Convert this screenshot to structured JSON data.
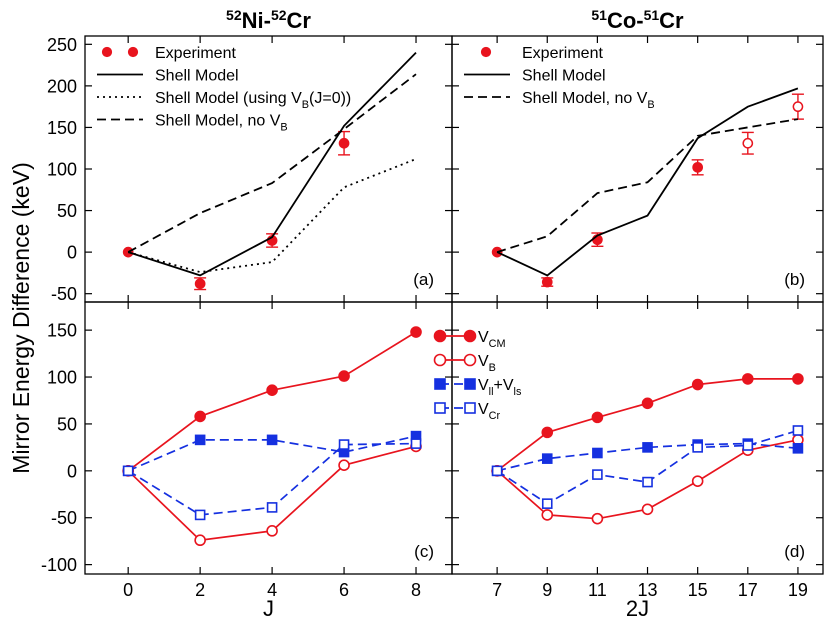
{
  "ylabel": "Mirror Energy Difference (keV)",
  "chart_data": [
    {
      "panel": "a",
      "type": "line",
      "title_parts": [
        {
          "text": "52",
          "sup": true
        },
        {
          "text": "Ni-",
          "sup": false
        },
        {
          "text": "52",
          "sup": true
        },
        {
          "text": "Cr",
          "sup": false
        }
      ],
      "panel_label": "(a)",
      "x": [
        0,
        2,
        4,
        6,
        8
      ],
      "xlim": [
        -1.2,
        9.0
      ],
      "ylim": [
        -60,
        260
      ],
      "yticks": [
        -50,
        0,
        50,
        100,
        150,
        200,
        250
      ],
      "series": [
        {
          "name": "Experiment",
          "kind": "exp",
          "color": "#e8141e",
          "points": [
            {
              "x": 0,
              "y": 0,
              "err": 0,
              "filled": true
            },
            {
              "x": 2,
              "y": -38,
              "err": 7,
              "filled": true
            },
            {
              "x": 4,
              "y": 14,
              "err": 8,
              "filled": true
            },
            {
              "x": 6,
              "y": 131,
              "err": 14,
              "filled": true
            }
          ]
        },
        {
          "name": "Shell Model",
          "kind": "line",
          "style": "solid",
          "color": "#000000",
          "x": [
            0,
            2,
            4,
            6,
            8
          ],
          "values": [
            0,
            -28,
            18,
            152,
            240
          ]
        },
        {
          "name": "Shell Model (using V_B(J=0))",
          "kind": "line",
          "style": "dotted",
          "color": "#000000",
          "x": [
            0,
            2,
            4,
            6,
            8
          ],
          "values": [
            0,
            -24,
            -12,
            78,
            112
          ]
        },
        {
          "name": "Shell Model, no V_B",
          "kind": "line",
          "style": "dashed",
          "color": "#000000",
          "x": [
            0,
            2,
            4,
            6,
            8
          ],
          "values": [
            0,
            47,
            83,
            148,
            214
          ]
        }
      ],
      "legend": [
        {
          "label": "Experiment",
          "kind": "exp2"
        },
        {
          "label": "Shell Model",
          "kind": "solid"
        },
        {
          "label": "Shell Model (using V",
          "sub": "B",
          "tail": "(J=0))",
          "kind": "dotted"
        },
        {
          "label": "Shell Model, no V",
          "sub": "B",
          "tail": "",
          "kind": "dashed"
        }
      ]
    },
    {
      "panel": "b",
      "type": "line",
      "title_parts": [
        {
          "text": "51",
          "sup": true
        },
        {
          "text": "Co-",
          "sup": false
        },
        {
          "text": "51",
          "sup": true
        },
        {
          "text": "Cr",
          "sup": false
        }
      ],
      "panel_label": "(b)",
      "x": [
        7,
        9,
        11,
        13,
        15,
        17,
        19
      ],
      "xlim": [
        5.2,
        20.0
      ],
      "ylim": [
        -60,
        260
      ],
      "yticks": [
        -50,
        0,
        50,
        100,
        150,
        200,
        250
      ],
      "series": [
        {
          "name": "Experiment",
          "kind": "exp",
          "color": "#e8141e",
          "points": [
            {
              "x": 7,
              "y": 0,
              "err": 0,
              "filled": true
            },
            {
              "x": 9,
              "y": -36,
              "err": 5,
              "filled": true
            },
            {
              "x": 11,
              "y": 15,
              "err": 8,
              "filled": true
            },
            {
              "x": 15,
              "y": 102,
              "err": 9,
              "filled": true
            },
            {
              "x": 17,
              "y": 131,
              "err": 13,
              "filled": false
            },
            {
              "x": 19,
              "y": 175,
              "err": 15,
              "filled": false
            }
          ]
        },
        {
          "name": "Shell Model",
          "kind": "line",
          "style": "solid",
          "color": "#000000",
          "x": [
            7,
            9,
            11,
            13,
            15,
            17,
            19
          ],
          "values": [
            0,
            -28,
            20,
            44,
            137,
            175,
            197
          ]
        },
        {
          "name": "Shell Model, no V_B",
          "kind": "line",
          "style": "dashed",
          "color": "#000000",
          "x": [
            7,
            9,
            11,
            13,
            15,
            17,
            19
          ],
          "values": [
            0,
            19,
            71,
            84,
            140,
            150,
            160
          ]
        }
      ],
      "legend": [
        {
          "label": "Experiment",
          "kind": "exp1"
        },
        {
          "label": "Shell Model",
          "kind": "solid"
        },
        {
          "label": "Shell Model, no V",
          "sub": "B",
          "tail": "",
          "kind": "dashed"
        }
      ]
    },
    {
      "panel": "c",
      "type": "line",
      "panel_label": "(c)",
      "xlabel": "J",
      "x": [
        0,
        2,
        4,
        6,
        8
      ],
      "xticks": [
        0,
        2,
        4,
        6,
        8
      ],
      "xlim": [
        -1.2,
        9.0
      ],
      "ylim": [
        -110,
        180
      ],
      "yticks": [
        -100,
        -50,
        0,
        50,
        100,
        150
      ],
      "series": [
        {
          "name": "V_CM",
          "style": "solid",
          "marker": "circle",
          "filled": true,
          "color": "#e8141e",
          "x": [
            0,
            2,
            4,
            6,
            8
          ],
          "values": [
            0,
            58,
            86,
            101,
            148
          ]
        },
        {
          "name": "V_B",
          "style": "solid",
          "marker": "circle",
          "filled": false,
          "color": "#e8141e",
          "x": [
            0,
            2,
            4,
            6,
            8
          ],
          "values": [
            0,
            -74,
            -64,
            6,
            26
          ]
        },
        {
          "name": "V_ll+V_ls",
          "style": "dashed",
          "marker": "square",
          "filled": true,
          "color": "#1530e0",
          "x": [
            0,
            2,
            4,
            6,
            8
          ],
          "values": [
            0,
            33,
            33,
            20,
            37
          ]
        },
        {
          "name": "V_Cr",
          "style": "dashed",
          "marker": "square",
          "filled": false,
          "color": "#1530e0",
          "x": [
            0,
            2,
            4,
            6,
            8
          ],
          "values": [
            0,
            -47,
            -39,
            28,
            29
          ]
        }
      ],
      "legend": [
        {
          "label": "V",
          "sub": "CM",
          "tail": "",
          "marker": "circle",
          "filled": true,
          "style": "solid",
          "color": "#e8141e"
        },
        {
          "label": "V",
          "sub": "B",
          "tail": "",
          "marker": "circle",
          "filled": false,
          "style": "solid",
          "color": "#e8141e"
        },
        {
          "label": "V",
          "sub": "ll",
          "tail": "+V",
          "sub2": "ls",
          "marker": "square",
          "filled": true,
          "style": "dashed",
          "color": "#1530e0"
        },
        {
          "label": "V",
          "sub": "Cr",
          "tail": "",
          "marker": "square",
          "filled": false,
          "style": "dashed",
          "color": "#1530e0"
        }
      ]
    },
    {
      "panel": "d",
      "type": "line",
      "panel_label": "(d)",
      "xlabel": "2J",
      "x": [
        7,
        9,
        11,
        13,
        15,
        17,
        19
      ],
      "xticks": [
        7,
        9,
        11,
        13,
        15,
        17,
        19
      ],
      "xlim": [
        5.2,
        20.0
      ],
      "ylim": [
        -110,
        180
      ],
      "yticks": [
        -100,
        -50,
        0,
        50,
        100,
        150
      ],
      "series": [
        {
          "name": "V_CM",
          "style": "solid",
          "marker": "circle",
          "filled": true,
          "color": "#e8141e",
          "x": [
            7,
            9,
            11,
            13,
            15,
            17,
            19
          ],
          "values": [
            0,
            41,
            57,
            72,
            92,
            98,
            98
          ]
        },
        {
          "name": "V_B",
          "style": "solid",
          "marker": "circle",
          "filled": false,
          "color": "#e8141e",
          "x": [
            7,
            9,
            11,
            13,
            15,
            17,
            19
          ],
          "values": [
            0,
            -47,
            -51,
            -41,
            -11,
            22,
            33
          ]
        },
        {
          "name": "V_ll+V_ls",
          "style": "dashed",
          "marker": "square",
          "filled": true,
          "color": "#1530e0",
          "x": [
            7,
            9,
            11,
            13,
            15,
            17,
            19
          ],
          "values": [
            0,
            13,
            19,
            25,
            28,
            29,
            24
          ]
        },
        {
          "name": "V_Cr",
          "style": "dashed",
          "marker": "square",
          "filled": false,
          "color": "#1530e0",
          "x": [
            7,
            9,
            11,
            13,
            15,
            17,
            19
          ],
          "values": [
            0,
            -35,
            -4,
            -12,
            25,
            27,
            43
          ]
        }
      ]
    }
  ]
}
